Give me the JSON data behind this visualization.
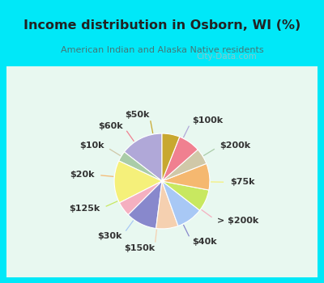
{
  "title": "Income distribution in Osborn, WI (%)",
  "subtitle": "American Indian and Alaska Native residents",
  "labels": [
    "$100k",
    "$200k",
    "$75k",
    "> $200k",
    "$40k",
    "$150k",
    "$30k",
    "$125k",
    "$20k",
    "$10k",
    "$60k",
    "$50k"
  ],
  "sizes": [
    14.5,
    3.5,
    14.5,
    5.0,
    10.5,
    7.5,
    9.0,
    7.5,
    9.0,
    5.5,
    7.5,
    6.0
  ],
  "colors": [
    "#b0a8d8",
    "#aacca8",
    "#f5f07a",
    "#f5b0c0",
    "#8888cc",
    "#f5d0b0",
    "#a8c8f5",
    "#c8e860",
    "#f5b870",
    "#d0c8a8",
    "#f08090",
    "#c8a830"
  ],
  "startangle": 90,
  "bg_cyan": "#00e8f8",
  "bg_chart": "#d8f5e8",
  "title_color": "#222222",
  "subtitle_color": "#447777",
  "watermark": "City-Data.com",
  "label_fontsize": 8,
  "label_color": "#333333"
}
